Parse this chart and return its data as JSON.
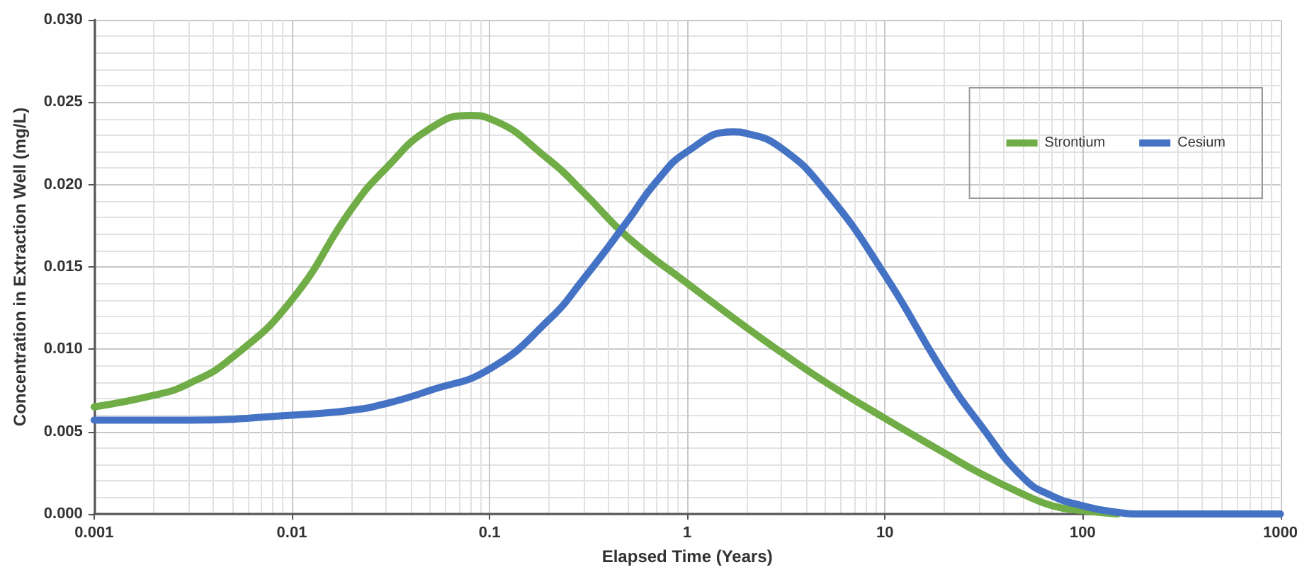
{
  "chart_data": {
    "type": "line",
    "xlabel": "Elapsed Time (Years)",
    "ylabel": "Concentration in Extraction Well (mg/L)",
    "log": "x",
    "grid": true,
    "legend": "top right",
    "marker": "none",
    "line_style": "solid",
    "xlim": [
      0.001,
      1000
    ],
    "xticks": [
      0.001,
      0.01,
      0.1,
      1,
      10,
      100,
      1000
    ],
    "ylim": [
      0,
      0.03
    ],
    "yticks": [
      {
        "value": 0,
        "label": "0.000"
      },
      {
        "value": 0.005,
        "label": "0.005"
      },
      {
        "value": 0.01,
        "label": "0.010"
      },
      {
        "value": 0.015,
        "label": "0.015"
      },
      {
        "value": 0.02,
        "label": "0.020"
      },
      {
        "value": 0.025,
        "label": "0.025"
      },
      {
        "value": 0.03,
        "label": "0.030"
      }
    ],
    "series": [
      {
        "name": "Strontium",
        "color": "#70ad47",
        "x": [
          0.001,
          0.002,
          0.003,
          0.005,
          0.01,
          0.02,
          0.03,
          0.05,
          0.08,
          0.1,
          0.2,
          0.3,
          0.5,
          1,
          2,
          3,
          5,
          10,
          20,
          30,
          50,
          70,
          100,
          150
        ],
        "values": [
          0.0065,
          0.0072,
          0.0079,
          0.0095,
          0.013,
          0.0185,
          0.021,
          0.0234,
          0.0242,
          0.024,
          0.0215,
          0.0195,
          0.0168,
          0.014,
          0.0113,
          0.0098,
          0.008,
          0.0058,
          0.0037,
          0.0025,
          0.0012,
          0.0005,
          0.0002,
          0
        ]
      },
      {
        "name": "Cesium",
        "color": "#4472c4",
        "x": [
          0.001,
          0.003,
          0.01,
          0.02,
          0.03,
          0.05,
          0.1,
          0.2,
          0.3,
          0.5,
          0.7,
          1,
          1.7,
          2,
          3,
          5,
          10,
          20,
          30,
          50,
          70,
          100,
          150,
          200,
          300,
          1000
        ],
        "values": [
          0.0057,
          0.0057,
          0.006,
          0.0063,
          0.0067,
          0.0075,
          0.0088,
          0.0118,
          0.0143,
          0.0178,
          0.0202,
          0.022,
          0.0232,
          0.0231,
          0.0222,
          0.0196,
          0.0145,
          0.0085,
          0.0055,
          0.0022,
          0.0011,
          0.0005,
          0.0001,
          0,
          0,
          0
        ]
      }
    ]
  }
}
